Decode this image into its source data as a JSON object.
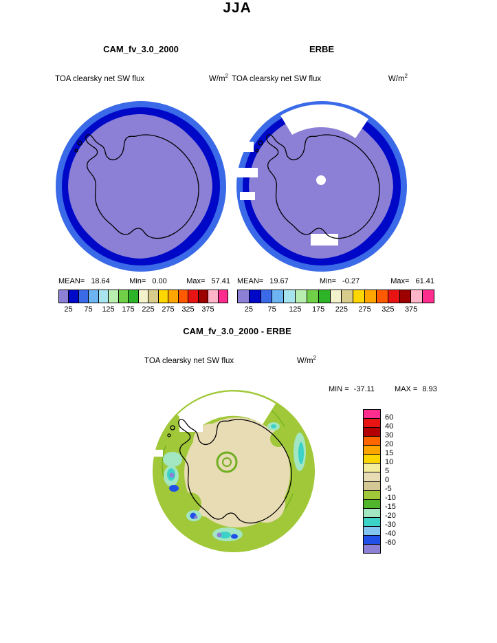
{
  "page": {
    "title": "JJA"
  },
  "colors": {
    "map-purple": "#8b7fd6",
    "map-navy": "#0008c8",
    "map-blue": "#3a6ae8",
    "diff-green": "#a0c838",
    "diff-beige": "#e8dcb4",
    "diff-seafoam": "#a2e6c2",
    "diff-turquoise": "#3cd2c8",
    "diff-blue": "#2050e8",
    "diff-purple": "#8b7fd6",
    "diff-contour": "#6fae1f"
  },
  "panels": {
    "cam": {
      "header": "CAM_fv_3.0_2000",
      "subtitle": "TOA clearsky net SW flux",
      "units_base": "W/m",
      "units_exp": "2",
      "stats": {
        "mean_label": "MEAN=",
        "mean": "18.64",
        "min_label": "Min=",
        "min": "0.00",
        "max_label": "Max=",
        "max": "57.41"
      }
    },
    "erbe": {
      "header": "ERBE",
      "subtitle": "TOA clearsky net SW flux",
      "units_base": "W/m",
      "units_exp": "2",
      "stats": {
        "mean_label": "MEAN=",
        "mean": "19.67",
        "min_label": "Min=",
        "min": "-0.27",
        "max_label": "Max=",
        "max": "61.41"
      }
    },
    "diff": {
      "header": "CAM_fv_3.0_2000 - ERBE",
      "subtitle": "TOA clearsky net SW flux",
      "units_base": "W/m",
      "units_exp": "2",
      "stats": {
        "min_label": "MIN =",
        "min": "-37.11",
        "max_label": "MAX =",
        "max": "8.93"
      }
    }
  },
  "colorbar_top": {
    "colors": [
      "#8b7fd6",
      "#0008c8",
      "#3a6ae8",
      "#6cb4f2",
      "#a8e4ee",
      "#b8eeb0",
      "#70d048",
      "#2eb428",
      "#f4f2cc",
      "#d8cc8c",
      "#ffd700",
      "#ffa500",
      "#ff5a00",
      "#e81414",
      "#9c0000",
      "#ffb4c8",
      "#ff2e8e"
    ],
    "ticks": [
      "25",
      "75",
      "125",
      "175",
      "225",
      "275",
      "325",
      "375"
    ]
  },
  "colorbar_diff": {
    "colors": [
      "#ff2e8e",
      "#e81414",
      "#b40000",
      "#ff6600",
      "#ffa500",
      "#ffd700",
      "#f4ee9c",
      "#e8dcb4",
      "#d4c894",
      "#a0c838",
      "#50b42c",
      "#a2e6c2",
      "#3cd2c8",
      "#84c4f0",
      "#2050e8",
      "#8b7fd6"
    ],
    "labels": [
      "60",
      "40",
      "30",
      "20",
      "15",
      "10",
      "5",
      "0",
      "-5",
      "-10",
      "-15",
      "-20",
      "-30",
      "-40",
      "-60"
    ]
  },
  "chart_data": [
    {
      "type": "heatmap",
      "title": "CAM_fv_3.0_2000 TOA clearsky net SW flux, JJA",
      "projection": "south polar stereographic (Antarctica)",
      "units": "W/m2",
      "stats": {
        "mean": 18.64,
        "min": 0.0,
        "max": 57.41
      },
      "contour_levels": [
        25,
        50,
        75,
        100,
        125,
        150,
        175,
        200,
        225,
        250,
        275,
        300,
        325,
        350,
        375,
        400
      ],
      "colorbar_tick_labels": [
        25,
        75,
        125,
        175,
        225,
        275,
        325,
        375
      ],
      "field_summary": "Interior of polar cap < 25 W/m2 (purple); 25-50 W/m2 ring (dark blue); 50-75 W/m2 at outer rim (blue)"
    },
    {
      "type": "heatmap",
      "title": "ERBE TOA clearsky net SW flux, JJA",
      "projection": "south polar stereographic (Antarctica)",
      "units": "W/m2",
      "stats": {
        "mean": 19.67,
        "min": -0.27,
        "max": 61.41
      },
      "contour_levels": [
        25,
        50,
        75,
        100,
        125,
        150,
        175,
        200,
        225,
        250,
        275,
        300,
        325,
        350,
        375,
        400
      ],
      "colorbar_tick_labels": [
        25,
        75,
        125,
        175,
        225,
        275,
        325,
        375
      ],
      "field_summary": "Same pattern as model; white patches and pole-hole dot indicate missing ERBE observations"
    },
    {
      "type": "heatmap",
      "title": "CAM_fv_3.0_2000 - ERBE difference, TOA clearsky net SW flux, JJA",
      "projection": "south polar stereographic (Antarctica)",
      "units": "W/m2",
      "stats": {
        "min": -37.11,
        "max": 8.93
      },
      "contour_levels": [
        -60,
        -40,
        -30,
        -20,
        -15,
        -10,
        -5,
        0,
        5,
        10,
        15,
        20,
        30,
        40,
        60
      ],
      "field_summary": "0 to +5 W/m2 (beige) over Antarctic interior; -5 to -10 W/m2 (yellow-green) ring over Southern Ocean; scattered -15 to -60 W/m2 patches (teal/blue/purple); white = missing data"
    }
  ]
}
